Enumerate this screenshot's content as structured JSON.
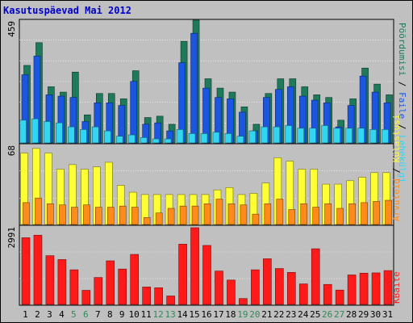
{
  "title": "Kasutuspäevad Mai 2012",
  "colors": {
    "background": "#c0c0c0",
    "grid": "#ffffff",
    "pages": "#1e7a5a",
    "files": "#1a56e0",
    "hits": "#33d6f0",
    "visits": "#ffff33",
    "visitors": "#ff8c1a",
    "kbytes": "#ff1a1a",
    "weekend_label": "#2e8b57",
    "weekday_label": "#000000"
  },
  "chart_data": [
    {
      "type": "bar",
      "title": "Kasutuspäevad Mai 2012",
      "panel": "top",
      "ymax_label": "459",
      "ylim": [
        0,
        459
      ],
      "categories": [
        "1",
        "2",
        "3",
        "4",
        "5",
        "6",
        "7",
        "8",
        "9",
        "10",
        "11",
        "12",
        "13",
        "14",
        "15",
        "16",
        "17",
        "18",
        "19",
        "20",
        "21",
        "22",
        "23",
        "24",
        "25",
        "26",
        "27",
        "28",
        "29",
        "30",
        "31"
      ],
      "weekend_days": [
        "5",
        "6",
        "12",
        "13",
        "19",
        "20",
        "26",
        "27"
      ],
      "legend": [
        "Pöördumisi",
        "Faile",
        "Lehekülgi"
      ],
      "series": [
        {
          "name": "Pöördumisi",
          "color_key": "pages",
          "values": [
            290,
            375,
            210,
            190,
            265,
            105,
            185,
            185,
            165,
            270,
            95,
            100,
            70,
            380,
            459,
            240,
            205,
            190,
            135,
            70,
            185,
            240,
            240,
            210,
            180,
            170,
            85,
            165,
            280,
            220,
            180
          ]
        },
        {
          "name": "Faile",
          "color_key": "files",
          "values": [
            255,
            325,
            180,
            175,
            170,
            80,
            150,
            150,
            140,
            230,
            70,
            75,
            45,
            300,
            410,
            205,
            170,
            165,
            115,
            45,
            170,
            200,
            210,
            175,
            160,
            150,
            60,
            140,
            250,
            190,
            150
          ]
        },
        {
          "name": "Lehekülgi",
          "color_key": "hits",
          "values": [
            85,
            90,
            80,
            75,
            60,
            50,
            60,
            45,
            25,
            30,
            20,
            15,
            15,
            50,
            35,
            35,
            40,
            35,
            25,
            45,
            60,
            60,
            65,
            55,
            55,
            65,
            55,
            55,
            55,
            50,
            50
          ]
        }
      ]
    },
    {
      "type": "bar",
      "panel": "middle",
      "ymax_label": "68",
      "ylim": [
        0,
        68
      ],
      "categories": [
        "1",
        "2",
        "3",
        "4",
        "5",
        "6",
        "7",
        "8",
        "9",
        "10",
        "11",
        "12",
        "13",
        "14",
        "15",
        "16",
        "17",
        "18",
        "19",
        "20",
        "21",
        "22",
        "23",
        "24",
        "25",
        "26",
        "27",
        "28",
        "29",
        "30",
        "31"
      ],
      "legend": [
        "Külastusi",
        "Arvuteid"
      ],
      "series": [
        {
          "name": "Külastusi",
          "color_key": "visits",
          "values": [
            62,
            66,
            62,
            48,
            52,
            48,
            50,
            54,
            34,
            28,
            26,
            26,
            26,
            26,
            26,
            26,
            30,
            32,
            26,
            27,
            36,
            58,
            55,
            48,
            48,
            35,
            35,
            38,
            41,
            45,
            45
          ]
        },
        {
          "name": "Arvuteid",
          "color_key": "visitors",
          "values": [
            19,
            23,
            18,
            17,
            15,
            17,
            15,
            15,
            16,
            15,
            6,
            10,
            14,
            16,
            16,
            18,
            22,
            18,
            17,
            9,
            18,
            22,
            13,
            18,
            15,
            18,
            14,
            18,
            19,
            20,
            21
          ]
        }
      ]
    },
    {
      "type": "bar",
      "panel": "bottom",
      "ymax_label": "2991",
      "ylim": [
        0,
        2991
      ],
      "categories": [
        "1",
        "2",
        "3",
        "4",
        "5",
        "6",
        "7",
        "8",
        "9",
        "10",
        "11",
        "12",
        "13",
        "14",
        "15",
        "16",
        "17",
        "18",
        "19",
        "20",
        "21",
        "22",
        "23",
        "24",
        "25",
        "26",
        "27",
        "28",
        "29",
        "30",
        "31"
      ],
      "legend": [
        "KBaite"
      ],
      "series": [
        {
          "name": "KBaite",
          "color_key": "kbytes",
          "values": [
            2600,
            2700,
            1900,
            1750,
            1350,
            550,
            1050,
            1700,
            1380,
            1950,
            680,
            650,
            330,
            2350,
            2991,
            2300,
            1300,
            950,
            230,
            1350,
            1780,
            1400,
            1250,
            800,
            2170,
            780,
            560,
            1150,
            1220,
            1230,
            1320
          ]
        }
      ]
    }
  ]
}
